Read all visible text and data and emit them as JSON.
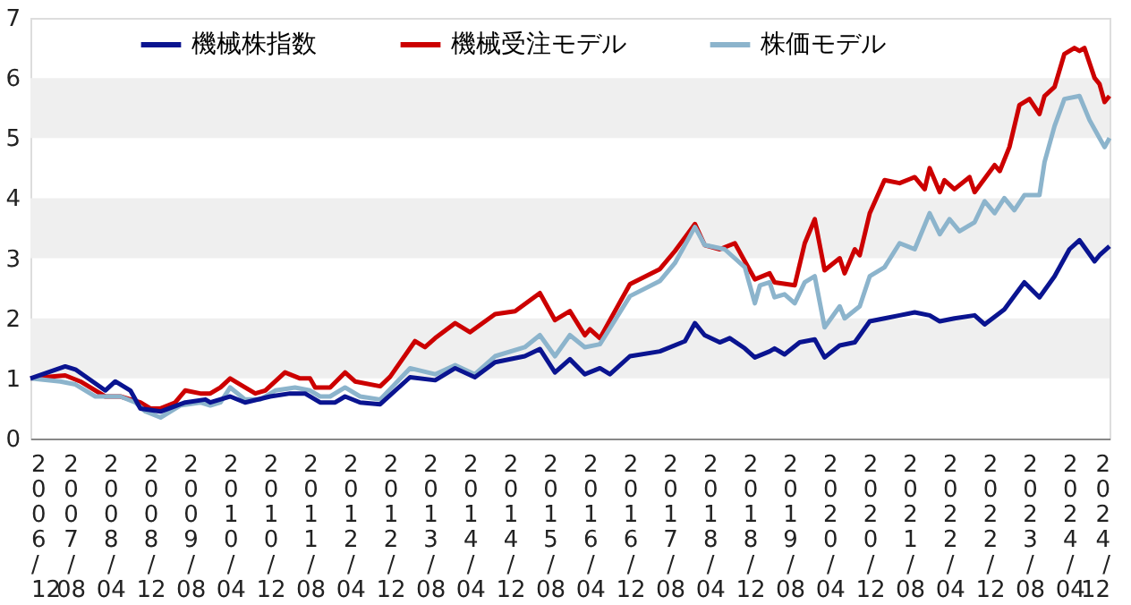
{
  "chart_data": {
    "type": "line",
    "legend": "top",
    "line_style": "solid",
    "marker": "none",
    "xlim": [
      "2006-12",
      "2024-12"
    ],
    "xticks": [
      {
        "value": "2006-12",
        "label": "2006/12"
      },
      {
        "value": "2007-08",
        "label": "2007/08"
      },
      {
        "value": "2008-04",
        "label": "2008/04"
      },
      {
        "value": "2008-12",
        "label": "2008/12"
      },
      {
        "value": "2009-08",
        "label": "2009/08"
      },
      {
        "value": "2010-04",
        "label": "2010/04"
      },
      {
        "value": "2010-12",
        "label": "2010/12"
      },
      {
        "value": "2011-08",
        "label": "2011/08"
      },
      {
        "value": "2012-04",
        "label": "2012/04"
      },
      {
        "value": "2012-12",
        "label": "2012/12"
      },
      {
        "value": "2013-08",
        "label": "2013/08"
      },
      {
        "value": "2014-04",
        "label": "2014/04"
      },
      {
        "value": "2014-12",
        "label": "2014/12"
      },
      {
        "value": "2015-08",
        "label": "2015/08"
      },
      {
        "value": "2016-04",
        "label": "2016/04"
      },
      {
        "value": "2016-12",
        "label": "2016/12"
      },
      {
        "value": "2017-08",
        "label": "2017/08"
      },
      {
        "value": "2018-04",
        "label": "2018/04"
      },
      {
        "value": "2018-12",
        "label": "2018/12"
      },
      {
        "value": "2019-08",
        "label": "2019/08"
      },
      {
        "value": "2020-04",
        "label": "2020/04"
      },
      {
        "value": "2020-12",
        "label": "2020/12"
      },
      {
        "value": "2021-08",
        "label": "2021/08"
      },
      {
        "value": "2022-04",
        "label": "2022/04"
      },
      {
        "value": "2022-12",
        "label": "2022/12"
      },
      {
        "value": "2023-08",
        "label": "2023/08"
      },
      {
        "value": "2024-04",
        "label": "2024/04"
      },
      {
        "value": "2024-12",
        "label": "2024/12"
      }
    ],
    "ylim": [
      0,
      7
    ],
    "yticks": [
      0,
      1,
      2,
      3,
      4,
      5,
      6,
      7
    ],
    "bands": [
      {
        "axis": "y",
        "from": 1,
        "to": 2,
        "color": "#efefef"
      },
      {
        "axis": "y",
        "from": 3,
        "to": 4,
        "color": "#efefef"
      },
      {
        "axis": "y",
        "from": 5,
        "to": 6,
        "color": "#efefef"
      }
    ],
    "series": [
      {
        "name": "機械株指数",
        "color": "#0a1490",
        "x": [
          "2006-12",
          "2007-07",
          "2007-09",
          "2008-03",
          "2008-05",
          "2008-08",
          "2008-10",
          "2009-02",
          "2009-07",
          "2009-11",
          "2009-12",
          "2010-04",
          "2010-07",
          "2010-12",
          "2011-04",
          "2011-07",
          "2011-10",
          "2012-01",
          "2012-03",
          "2012-06",
          "2012-10",
          "2013-04",
          "2013-09",
          "2014-01",
          "2014-05",
          "2014-09",
          "2015-03",
          "2015-06",
          "2015-09",
          "2015-12",
          "2016-03",
          "2016-06",
          "2016-08",
          "2016-12",
          "2017-06",
          "2017-11",
          "2018-01",
          "2018-03",
          "2018-06",
          "2018-08",
          "2018-11",
          "2019-01",
          "2019-04",
          "2019-05",
          "2019-07",
          "2019-10",
          "2020-01",
          "2020-03",
          "2020-06",
          "2020-09",
          "2020-12",
          "2021-03",
          "2021-06",
          "2021-09",
          "2021-12",
          "2022-02",
          "2022-05",
          "2022-09",
          "2022-11",
          "2023-03",
          "2023-07",
          "2023-10",
          "2024-01",
          "2024-04",
          "2024-06",
          "2024-09",
          "2024-10",
          "2024-12"
        ],
        "values": [
          1.0,
          1.2,
          1.15,
          0.8,
          0.95,
          0.8,
          0.5,
          0.45,
          0.6,
          0.65,
          0.6,
          0.7,
          0.6,
          0.7,
          0.75,
          0.75,
          0.6,
          0.6,
          0.7,
          0.6,
          0.57,
          1.02,
          0.97,
          1.17,
          1.02,
          1.27,
          1.37,
          1.49,
          1.1,
          1.32,
          1.07,
          1.17,
          1.07,
          1.37,
          1.45,
          1.62,
          1.92,
          1.72,
          1.6,
          1.67,
          1.5,
          1.35,
          1.45,
          1.5,
          1.4,
          1.6,
          1.65,
          1.35,
          1.55,
          1.6,
          1.95,
          2.0,
          2.05,
          2.1,
          2.05,
          1.95,
          2.0,
          2.05,
          1.9,
          2.15,
          2.6,
          2.35,
          2.7,
          3.15,
          3.3,
          2.95,
          3.05,
          3.2
        ]
      },
      {
        "name": "機械受注モデル",
        "color": "#cc0000",
        "x": [
          "2006-12",
          "2007-07",
          "2007-10",
          "2008-03",
          "2008-06",
          "2008-10",
          "2008-12",
          "2009-02",
          "2009-05",
          "2009-07",
          "2009-10",
          "2009-12",
          "2010-02",
          "2010-04",
          "2010-06",
          "2010-09",
          "2010-11",
          "2011-03",
          "2011-06",
          "2011-08",
          "2011-09",
          "2011-12",
          "2012-03",
          "2012-05",
          "2012-10",
          "2012-12",
          "2013-05",
          "2013-07",
          "2013-09",
          "2014-01",
          "2014-04",
          "2014-09",
          "2015-01",
          "2015-06",
          "2015-09",
          "2015-12",
          "2016-03",
          "2016-04",
          "2016-06",
          "2016-12",
          "2017-06",
          "2017-09",
          "2018-01",
          "2018-03",
          "2018-06",
          "2018-09",
          "2018-11",
          "2019-01",
          "2019-04",
          "2019-05",
          "2019-09",
          "2019-11",
          "2020-01",
          "2020-03",
          "2020-06",
          "2020-07",
          "2020-09",
          "2020-10",
          "2020-12",
          "2021-03",
          "2021-06",
          "2021-09",
          "2021-11",
          "2021-12",
          "2022-02",
          "2022-03",
          "2022-05",
          "2022-08",
          "2022-09",
          "2023-01",
          "2023-02",
          "2023-04",
          "2023-06",
          "2023-08",
          "2023-10",
          "2023-11",
          "2024-01",
          "2024-03",
          "2024-05",
          "2024-06",
          "2024-07",
          "2024-09",
          "2024-10",
          "2024-11",
          "2024-12"
        ],
        "values": [
          1.0,
          1.05,
          0.95,
          0.7,
          0.7,
          0.6,
          0.5,
          0.5,
          0.6,
          0.8,
          0.75,
          0.75,
          0.85,
          1.0,
          0.9,
          0.75,
          0.8,
          1.1,
          1.0,
          1.0,
          0.85,
          0.85,
          1.1,
          0.95,
          0.87,
          1.03,
          1.62,
          1.52,
          1.67,
          1.92,
          1.77,
          2.07,
          2.12,
          2.42,
          1.97,
          2.12,
          1.72,
          1.82,
          1.67,
          2.57,
          2.82,
          3.12,
          3.57,
          3.22,
          3.15,
          3.25,
          2.95,
          2.65,
          2.75,
          2.6,
          2.55,
          3.25,
          3.65,
          2.8,
          3.0,
          2.75,
          3.15,
          3.05,
          3.75,
          4.3,
          4.25,
          4.35,
          4.15,
          4.5,
          4.1,
          4.3,
          4.15,
          4.35,
          4.1,
          4.55,
          4.45,
          4.85,
          5.55,
          5.65,
          5.4,
          5.7,
          5.85,
          6.4,
          6.5,
          6.45,
          6.5,
          6.0,
          5.9,
          5.6,
          5.7
        ]
      },
      {
        "name": "株価モデル",
        "color": "#8cb4cc",
        "x": [
          "2006-12",
          "2007-06",
          "2007-09",
          "2008-01",
          "2008-06",
          "2008-09",
          "2008-11",
          "2009-02",
          "2009-06",
          "2009-10",
          "2009-12",
          "2010-02",
          "2010-04",
          "2010-07",
          "2010-10",
          "2011-01",
          "2011-05",
          "2011-08",
          "2011-10",
          "2011-12",
          "2012-03",
          "2012-06",
          "2012-10",
          "2013-04",
          "2013-09",
          "2014-01",
          "2014-05",
          "2014-09",
          "2015-03",
          "2015-06",
          "2015-09",
          "2015-12",
          "2016-03",
          "2016-06",
          "2016-12",
          "2017-06",
          "2017-09",
          "2018-01",
          "2018-03",
          "2018-07",
          "2018-11",
          "2019-01",
          "2019-02",
          "2019-04",
          "2019-05",
          "2019-07",
          "2019-09",
          "2019-11",
          "2020-01",
          "2020-03",
          "2020-06",
          "2020-07",
          "2020-10",
          "2020-12",
          "2021-03",
          "2021-06",
          "2021-09",
          "2021-12",
          "2022-02",
          "2022-04",
          "2022-06",
          "2022-09",
          "2022-11",
          "2023-01",
          "2023-03",
          "2023-05",
          "2023-07",
          "2023-10",
          "2023-11",
          "2024-01",
          "2024-03",
          "2024-06",
          "2024-08",
          "2024-10",
          "2024-11",
          "2024-12"
        ],
        "values": [
          1.0,
          0.95,
          0.9,
          0.7,
          0.7,
          0.6,
          0.45,
          0.35,
          0.55,
          0.6,
          0.55,
          0.6,
          0.85,
          0.65,
          0.65,
          0.8,
          0.85,
          0.8,
          0.7,
          0.7,
          0.85,
          0.7,
          0.65,
          1.17,
          1.07,
          1.22,
          1.07,
          1.37,
          1.52,
          1.72,
          1.37,
          1.72,
          1.52,
          1.57,
          2.37,
          2.62,
          2.92,
          3.52,
          3.22,
          3.15,
          2.85,
          2.25,
          2.55,
          2.6,
          2.35,
          2.4,
          2.25,
          2.6,
          2.7,
          1.85,
          2.2,
          2.0,
          2.2,
          2.7,
          2.85,
          3.25,
          3.15,
          3.75,
          3.4,
          3.65,
          3.45,
          3.6,
          3.95,
          3.75,
          4.0,
          3.8,
          4.05,
          4.05,
          4.6,
          5.2,
          5.65,
          5.7,
          5.3,
          5.0,
          4.85,
          5.0
        ]
      }
    ]
  }
}
